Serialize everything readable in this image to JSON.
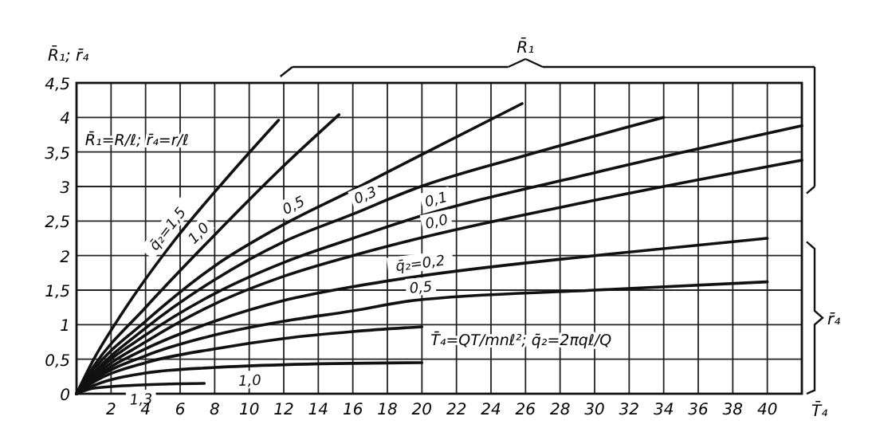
{
  "chart_data": {
    "type": "line",
    "xlabel": "T̄₄",
    "ylabel": "R̄₁; r̄₄",
    "xlim": [
      0,
      42
    ],
    "ylim": [
      0,
      4.5
    ],
    "xticks": [
      2,
      4,
      6,
      8,
      10,
      12,
      14,
      16,
      18,
      20,
      22,
      24,
      26,
      28,
      30,
      32,
      34,
      36,
      38,
      40
    ],
    "yticks": [
      0,
      {
        "value": 0.5,
        "label": "0,5"
      },
      1,
      {
        "value": 1.5,
        "label": "1,5"
      },
      2,
      {
        "value": 2.5,
        "label": "2,5"
      },
      3,
      {
        "value": 3.5,
        "label": "3,5"
      },
      4,
      {
        "value": 4.5,
        "label": "4,5"
      }
    ],
    "grid": true,
    "marker": "none",
    "line_style": "solid",
    "annotations": [
      "R̄₁=R/ℓ; r̄₄=r/ℓ",
      "T̄₄=QT/mnℓ²; q̄₂=2πqℓ/Q",
      "R̄₁",
      "r̄₄"
    ],
    "series": [
      {
        "name": "q̄₂=1,5",
        "color": "#111111",
        "x": [
          0,
          1,
          2.6,
          5.7,
          8.8,
          11.7
        ],
        "values": [
          0,
          0.5,
          1.15,
          2.23,
          3.15,
          3.96
        ]
      },
      {
        "name": "1,0",
        "color": "#111111",
        "x": [
          0,
          1,
          4,
          8,
          12,
          15.2
        ],
        "values": [
          0,
          0.4,
          1.25,
          2.3,
          3.3,
          4.04
        ]
      },
      {
        "name": "0,5",
        "color": "#111111",
        "x": [
          0,
          1,
          4,
          8,
          12,
          16,
          19.5,
          25.8
        ],
        "values": [
          0,
          0.35,
          1.05,
          1.85,
          2.45,
          2.95,
          3.4,
          4.2
        ]
      },
      {
        "name": "0,3",
        "color": "#111111",
        "x": [
          0,
          1,
          4,
          8,
          12,
          16,
          19.5,
          26,
          34
        ],
        "values": [
          0,
          0.3,
          0.95,
          1.65,
          2.2,
          2.6,
          2.96,
          3.45,
          4.0
        ]
      },
      {
        "name": "0,1",
        "color": "#111111",
        "x": [
          0,
          1,
          4,
          8,
          12,
          16,
          19.5,
          30,
          42
        ],
        "values": [
          0,
          0.28,
          0.85,
          1.45,
          1.9,
          2.25,
          2.54,
          3.2,
          3.88
        ]
      },
      {
        "name": "0,0",
        "color": "#111111",
        "x": [
          0,
          1,
          4,
          8,
          12,
          16,
          19.5,
          30,
          42
        ],
        "values": [
          0,
          0.25,
          0.75,
          1.3,
          1.7,
          2.0,
          2.23,
          2.8,
          3.38
        ]
      },
      {
        "name": "q̄₂=0,2",
        "color": "#111111",
        "x": [
          0,
          1,
          4,
          8,
          12,
          16,
          19.5,
          30,
          40
        ],
        "values": [
          0,
          0.22,
          0.65,
          1.05,
          1.35,
          1.55,
          1.69,
          2.0,
          2.25
        ]
      },
      {
        "name": "0,5",
        "color": "#111111",
        "x": [
          0,
          1,
          4,
          8,
          12,
          16,
          19.5,
          30,
          40
        ],
        "values": [
          0,
          0.2,
          0.55,
          0.85,
          1.05,
          1.2,
          1.35,
          1.5,
          1.62
        ]
      },
      {
        "color": "#111111",
        "x": [
          0,
          1,
          4,
          8,
          12,
          16,
          20
        ],
        "values": [
          0,
          0.17,
          0.45,
          0.65,
          0.8,
          0.9,
          0.97
        ]
      },
      {
        "name": "1,0",
        "color": "#111111",
        "x": [
          0,
          1,
          4,
          8,
          12,
          20
        ],
        "values": [
          0,
          0.12,
          0.3,
          0.38,
          0.42,
          0.45
        ]
      },
      {
        "name": "1,3",
        "color": "#111111",
        "x": [
          0,
          1,
          4,
          7.4
        ],
        "values": [
          0,
          0.08,
          0.13,
          0.15
        ]
      }
    ]
  }
}
